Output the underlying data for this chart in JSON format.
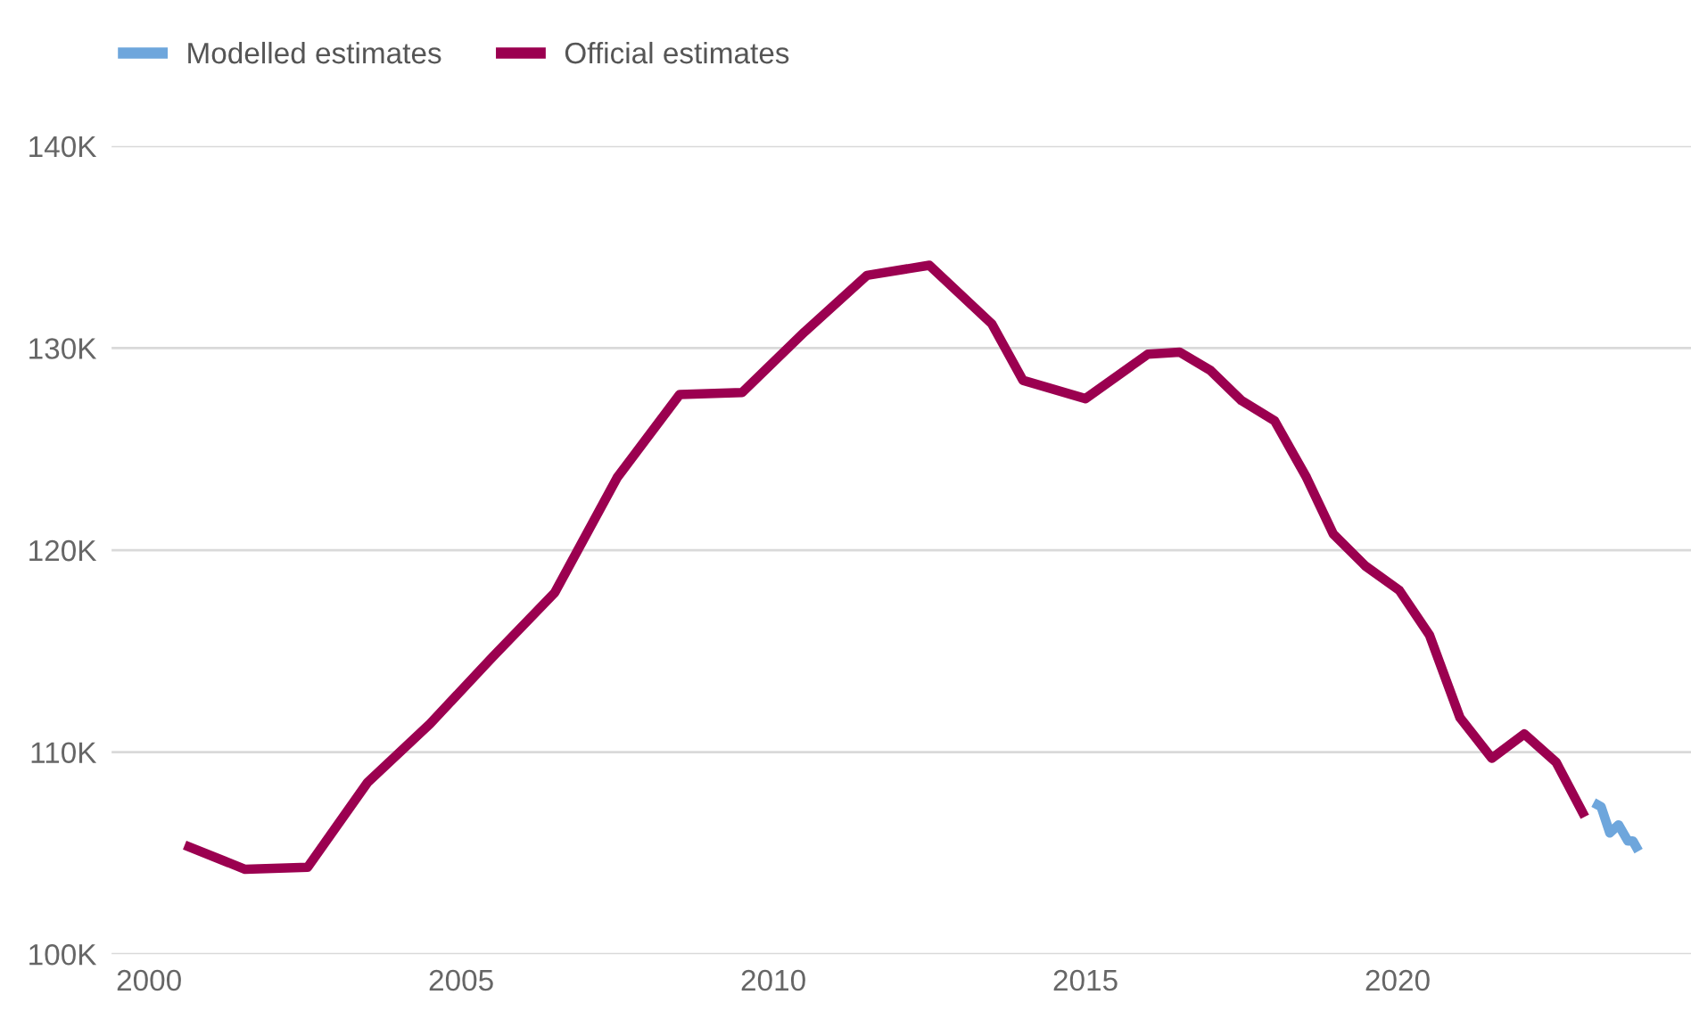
{
  "chart_data": {
    "type": "line",
    "series": [
      {
        "name": "Modelled estimates",
        "color": "#6ea6dc",
        "x": [
          2023.14,
          2023.26,
          2023.4,
          2023.54,
          2023.69,
          2023.77,
          2023.86
        ],
        "values": [
          107.5,
          107.3,
          106.0,
          106.4,
          105.6,
          105.6,
          105.1
        ]
      },
      {
        "name": "Official estimates",
        "color": "#9b0050",
        "x": [
          2000.57,
          2001.54,
          2002.54,
          2003.5,
          2004.5,
          2005.5,
          2006.5,
          2007.5,
          2008.5,
          2009.5,
          2010.5,
          2011.5,
          2012.5,
          2013.5,
          2014.0,
          2015.0,
          2016.0,
          2016.51,
          2017.0,
          2017.5,
          2018.03,
          2018.54,
          2018.97,
          2019.49,
          2020.03,
          2020.51,
          2021.0,
          2021.51,
          2022.03,
          2022.54,
          2023.0
        ],
        "values": [
          105.4,
          104.2,
          104.3,
          108.5,
          111.4,
          114.7,
          117.9,
          123.6,
          127.7,
          127.8,
          130.8,
          133.6,
          134.1,
          131.2,
          128.4,
          127.5,
          129.7,
          129.8,
          128.9,
          127.4,
          126.4,
          123.6,
          120.8,
          119.2,
          118.0,
          115.8,
          111.7,
          109.7,
          110.9,
          109.5,
          106.8
        ]
      }
    ],
    "xlim": [
      1999.4,
      2024.7
    ],
    "xticks": [
      2000,
      2005,
      2010,
      2015,
      2020
    ],
    "ylim": [
      100,
      140
    ],
    "yticks": [
      {
        "value": 100,
        "label": "100K"
      },
      {
        "value": 110,
        "label": "110K"
      },
      {
        "value": 120,
        "label": "120K"
      },
      {
        "value": 130,
        "label": "130K"
      },
      {
        "value": 140,
        "label": "140K"
      }
    ],
    "grid": "y",
    "legend": "top left",
    "line_style": "solid",
    "marker": "none"
  }
}
